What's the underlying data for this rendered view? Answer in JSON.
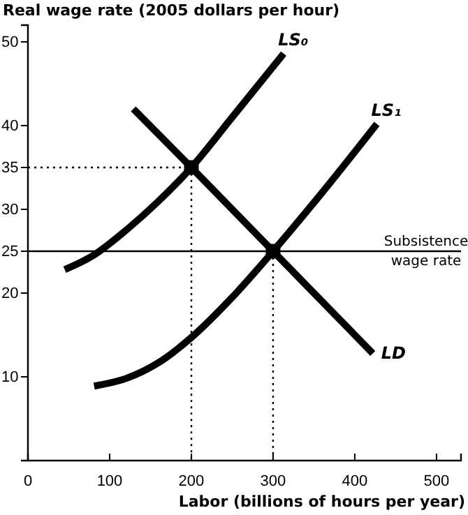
{
  "chart_data": {
    "type": "line",
    "xlabel": "Labor (billions of hours per  year)",
    "ylabel": "Real wage rate (2005 dollars per hour)",
    "xlim": [
      0,
      530
    ],
    "ylim": [
      0,
      52
    ],
    "xticks": [
      0,
      100,
      200,
      300,
      400,
      500
    ],
    "yticks": [
      10,
      20,
      25,
      30,
      35,
      40,
      50
    ],
    "grid": false,
    "legend": false,
    "marker": "none",
    "line_style": "solid",
    "ref_lines": [
      {
        "axis": "y",
        "value": 25,
        "label": "Subsistence wage rate",
        "color": "#000000",
        "line_style": "solid"
      }
    ],
    "series": [
      {
        "name": "LS₀",
        "color": "#000000",
        "x": [
          45,
          80,
          120,
          160,
          200,
          250,
          313
        ],
        "values": [
          22.8,
          24.5,
          27.5,
          31,
          35,
          41,
          48.6
        ]
      },
      {
        "name": "LS₁",
        "color": "#000000",
        "x": [
          81,
          120,
          160,
          200,
          250,
          300,
          360,
          427
        ],
        "values": [
          8.9,
          9.8,
          11.7,
          14.7,
          19.5,
          25,
          32,
          40.2
        ]
      },
      {
        "name": "LD",
        "color": "#000000",
        "x": [
          129,
          200,
          300,
          422
        ],
        "values": [
          42,
          35,
          25,
          12.8
        ]
      },
      {
        "color": "#000000",
        "line_style": "dotted",
        "x": [
          0,
          200,
          200
        ],
        "values": [
          35,
          35,
          0
        ]
      },
      {
        "color": "#000000",
        "line_style": "dotted",
        "x": [
          300,
          300
        ],
        "values": [
          25,
          0
        ]
      },
      {
        "type": "scatter",
        "marker": "square",
        "color": "#000000",
        "x": [
          200,
          300
        ],
        "values": [
          35,
          25
        ]
      }
    ]
  }
}
